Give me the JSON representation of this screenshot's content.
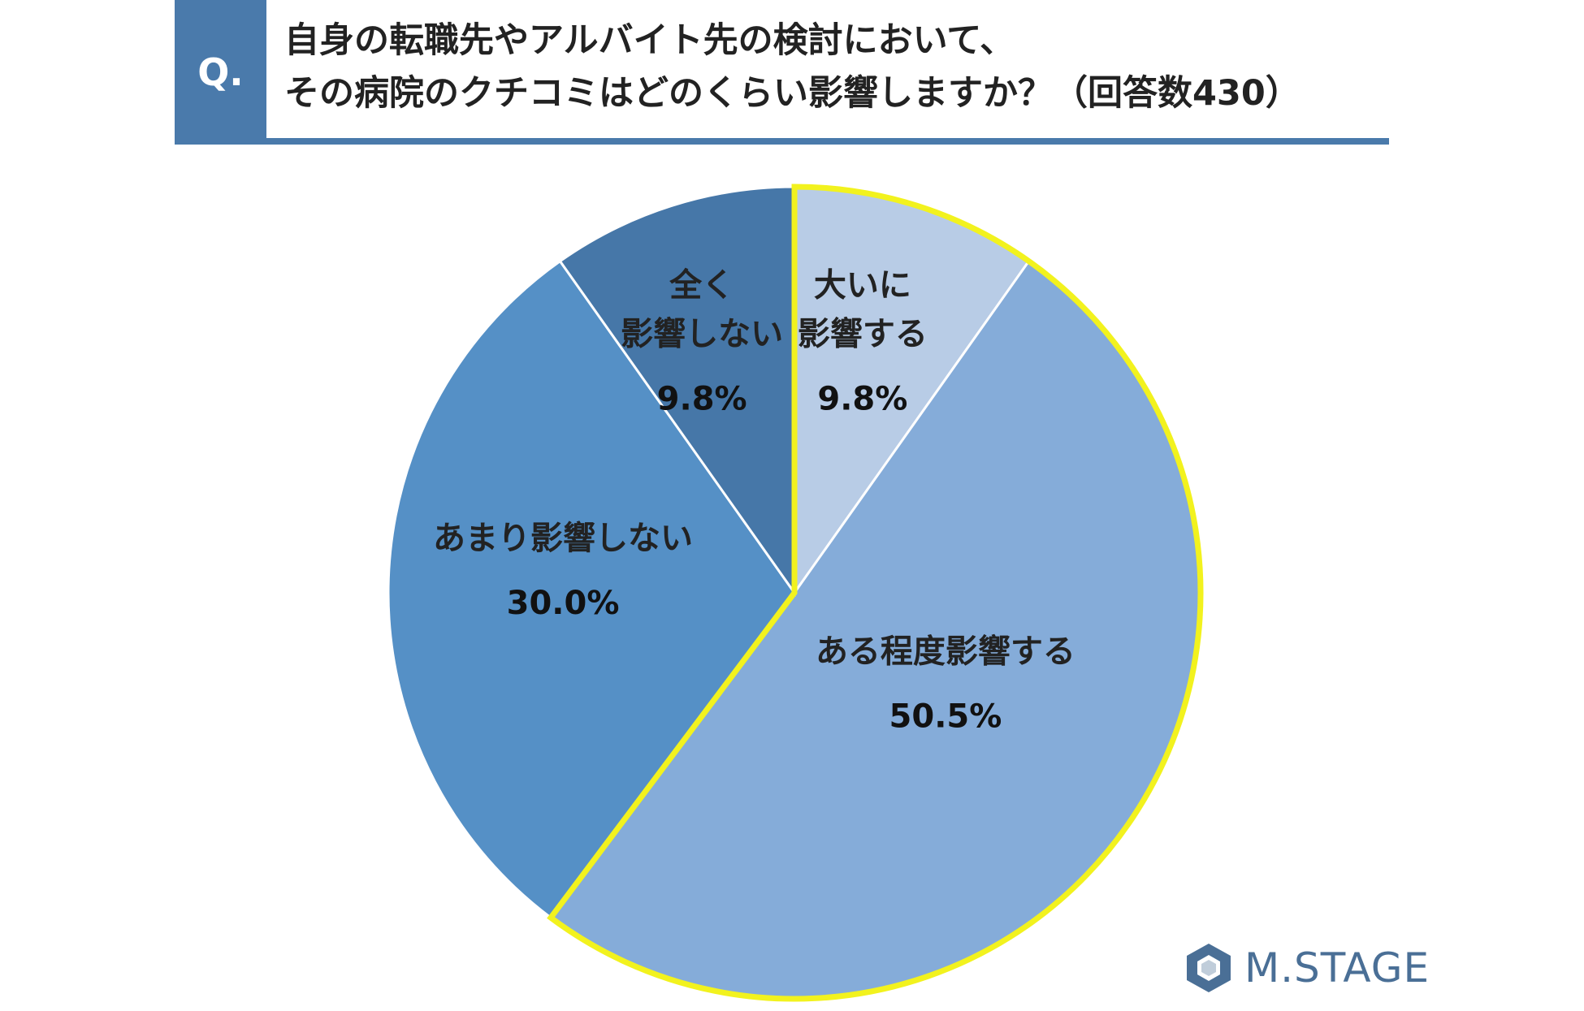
{
  "question": {
    "badge": "Q.",
    "line1": "自身の転職先やアルバイト先の検討において、",
    "line2": "その病院のクチコミはどのくらい影響しますか？（回答数430）"
  },
  "logo": {
    "text": "M.STAGE",
    "icon": "hexagon-logo-icon",
    "color": "#4a6f96"
  },
  "chart_data": {
    "type": "pie",
    "title": "自身の転職先やアルバイト先の検討において、その病院のクチコミはどのくらい影響しますか？（回答数430）",
    "slices": [
      {
        "label": "大いに影響する",
        "label_lines": [
          "大いに",
          "影響する"
        ],
        "value": 9.8,
        "display": "9.8%",
        "color": "#b8cce6",
        "highlight": true
      },
      {
        "label": "ある程度影響する",
        "label_lines": [
          "ある程度影響する"
        ],
        "value": 50.5,
        "display": "50.5%",
        "color": "#85acd9",
        "highlight": true
      },
      {
        "label": "あまり影響しない",
        "label_lines": [
          "あまり影響しない"
        ],
        "value": 30.0,
        "display": "30.0%",
        "color": "#5590c6",
        "highlight": false
      },
      {
        "label": "全く影響しない",
        "label_lines": [
          "全く",
          "影響しない"
        ],
        "value": 9.8,
        "display": "9.8%",
        "color": "#4677a8",
        "highlight": false
      }
    ],
    "start_angle_deg": 0,
    "direction": "clockwise",
    "highlight_color": "#f2f21e"
  }
}
